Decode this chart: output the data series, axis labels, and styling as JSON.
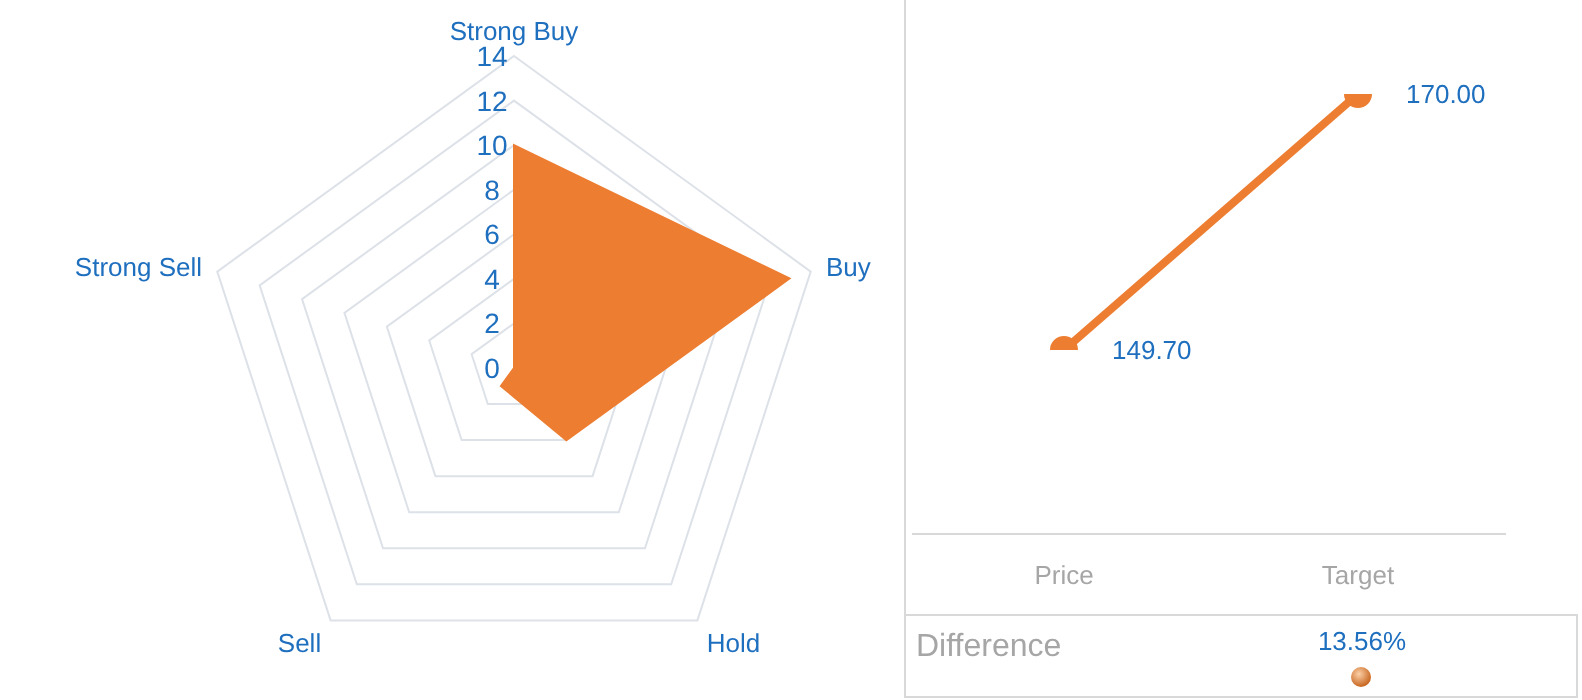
{
  "chart_data": [
    {
      "type": "radar",
      "categories": [
        "Strong Buy",
        "Buy",
        "Hold",
        "Sell",
        "Strong Sell"
      ],
      "series": [
        {
          "color": "#ed7d31",
          "values": [
            10,
            13,
            4,
            1,
            0
          ]
        }
      ],
      "ylim": [
        0,
        14
      ],
      "yticks": [
        0,
        2,
        4,
        6,
        8,
        10,
        12,
        14
      ],
      "grid": true
    },
    {
      "type": "line",
      "categories": [
        "Price",
        "Target"
      ],
      "series": [
        {
          "color": "#ed7d31",
          "values": [
            149.7,
            170
          ],
          "value_labels": [
            "149.70",
            "170.00"
          ]
        }
      ],
      "tick_labels": "x",
      "marker": "circle",
      "line_style": "solid"
    },
    {
      "type": "other",
      "title": "Difference",
      "annotations": [
        "13.56%"
      ]
    }
  ]
}
